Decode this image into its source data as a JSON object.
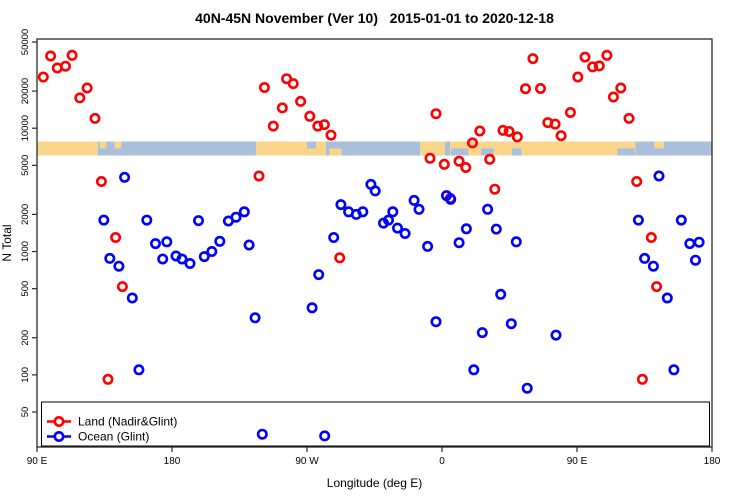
{
  "title": "40N-45N November (Ver 10)   2015-01-01 to 2020-12-18",
  "legend": {
    "items": [
      {
        "label": "Land (Nadir&Glint)",
        "color": "#ff0000"
      },
      {
        "label": "Ocean (Glint)",
        "color": "#0000ff"
      }
    ]
  },
  "chart_data": {
    "type": "scatter",
    "title": "40N-45N November (Ver 10)   2015-01-01 to 2020-12-18",
    "xlabel": "Longitude (deg E)",
    "ylabel": "N Total",
    "x_axis": {
      "range_deg": [
        90,
        540
      ],
      "note": "longitude axis wraps eastward starting at 90E",
      "ticks": [
        {
          "pos": 90,
          "label": "90 E"
        },
        {
          "pos": 180,
          "label": "180"
        },
        {
          "pos": 270,
          "label": "90 W"
        },
        {
          "pos": 360,
          "label": "0"
        },
        {
          "pos": 450,
          "label": "90 E"
        },
        {
          "pos": 540,
          "label": "180"
        }
      ]
    },
    "y_axis": {
      "scale": "log",
      "range": [
        26,
        52600
      ],
      "ticks": [
        50,
        100,
        200,
        500,
        1000,
        2000,
        5000,
        10000,
        20000,
        50000
      ]
    },
    "series": [
      {
        "name": "Land (Nadir&Glint)",
        "color": "#ff0000",
        "marker": "open-circle",
        "points": [
          [
            94.2,
            26000
          ],
          [
            99.1,
            38500
          ],
          [
            103.5,
            30800
          ],
          [
            109,
            31800
          ],
          [
            113.4,
            39000
          ],
          [
            118.5,
            17600
          ],
          [
            123.4,
            21200
          ],
          [
            128.7,
            12000
          ],
          [
            132.9,
            3700
          ],
          [
            137.3,
            92
          ],
          [
            142.4,
            1300
          ],
          [
            146.9,
            520
          ],
          [
            238,
            4100
          ],
          [
            241.6,
            21400
          ],
          [
            247.5,
            10400
          ],
          [
            253.5,
            14600
          ],
          [
            256.4,
            25200
          ],
          [
            260.8,
            23000
          ],
          [
            265.7,
            16500
          ],
          [
            271.9,
            12500
          ],
          [
            277.2,
            10400
          ],
          [
            281.6,
            10700
          ],
          [
            286,
            8800
          ],
          [
            291.8,
            890
          ],
          [
            352,
            5700
          ],
          [
            356,
            13100
          ],
          [
            361.5,
            5100
          ],
          [
            365.5,
            2700
          ],
          [
            371.4,
            5400
          ],
          [
            375.9,
            4800
          ],
          [
            380.3,
            7600
          ],
          [
            385.2,
            9500
          ],
          [
            391.8,
            5600
          ],
          [
            395.2,
            3200
          ],
          [
            400.7,
            9600
          ],
          [
            404.7,
            9400
          ],
          [
            410.2,
            8500
          ],
          [
            415.7,
            20900
          ],
          [
            420.6,
            36700
          ],
          [
            425.7,
            21000
          ],
          [
            430.5,
            11100
          ],
          [
            435.4,
            10800
          ],
          [
            439.4,
            8700
          ],
          [
            445.6,
            13400
          ],
          [
            450.5,
            26000
          ],
          [
            455.3,
            37700
          ],
          [
            460.4,
            31400
          ],
          [
            464.9,
            32000
          ],
          [
            469.9,
            39000
          ],
          [
            474.3,
            17900
          ],
          [
            479.2,
            21200
          ],
          [
            484.7,
            12000
          ],
          [
            489.8,
            3700
          ],
          [
            493.6,
            92
          ],
          [
            499.5,
            1300
          ],
          [
            503.1,
            520
          ]
        ]
      },
      {
        "name": "Ocean (Glint)",
        "color": "#0000ff",
        "marker": "open-circle",
        "points": [
          [
            134.5,
            1800
          ],
          [
            138.5,
            880
          ],
          [
            144.6,
            760
          ],
          [
            148.4,
            4000
          ],
          [
            153.5,
            420
          ],
          [
            157.9,
            110
          ],
          [
            163.2,
            1800
          ],
          [
            169,
            1160
          ],
          [
            173.8,
            870
          ],
          [
            176.5,
            1200
          ],
          [
            182.7,
            920
          ],
          [
            186.7,
            870
          ],
          [
            192,
            800
          ],
          [
            197.7,
            1780
          ],
          [
            201.5,
            910
          ],
          [
            206.5,
            1000
          ],
          [
            211.9,
            1210
          ],
          [
            217.6,
            1770
          ],
          [
            222.7,
            1900
          ],
          [
            228.2,
            2100
          ],
          [
            231.4,
            1130
          ],
          [
            235.4,
            290
          ],
          [
            240.2,
            33
          ],
          [
            273.4,
            350
          ],
          [
            277.8,
            650
          ],
          [
            281.8,
            32
          ],
          [
            287.8,
            1300
          ],
          [
            292.6,
            2400
          ],
          [
            297.7,
            2100
          ],
          [
            302.9,
            2000
          ],
          [
            307.2,
            2100
          ],
          [
            312.6,
            3500
          ],
          [
            315.5,
            3100
          ],
          [
            321,
            1700
          ],
          [
            324.3,
            1800
          ],
          [
            327.2,
            2100
          ],
          [
            330.3,
            1550
          ],
          [
            335.4,
            1400
          ],
          [
            341.4,
            2600
          ],
          [
            344.7,
            2200
          ],
          [
            350.4,
            1100
          ],
          [
            356,
            270
          ],
          [
            363,
            2840
          ],
          [
            365.8,
            2650
          ],
          [
            371.4,
            1180
          ],
          [
            376.3,
            1530
          ],
          [
            381.2,
            110
          ],
          [
            386.9,
            220
          ],
          [
            390.4,
            2200
          ],
          [
            396.2,
            1520
          ],
          [
            399.1,
            450
          ],
          [
            406.2,
            260
          ],
          [
            409.5,
            1200
          ],
          [
            416.8,
            78
          ],
          [
            436,
            210
          ],
          [
            490.9,
            1800
          ],
          [
            495.1,
            880
          ],
          [
            500.9,
            760
          ],
          [
            504.7,
            4100
          ],
          [
            510.2,
            420
          ],
          [
            514.6,
            110
          ],
          [
            519.5,
            1800
          ],
          [
            525.2,
            1160
          ],
          [
            529,
            850
          ],
          [
            531.4,
            1190
          ]
        ]
      }
    ],
    "map_band": {
      "description": "world-map strip of the 40N-45N latitude band drawn across the plot",
      "y_value_range": [
        5800,
        7800
      ],
      "land_color": "#F9D689",
      "ocean_color": "#A9BFDB",
      "segments": [
        {
          "type": "land",
          "from": 90,
          "to": 130.5,
          "part": "full"
        },
        {
          "type": "ocean",
          "from": 130.5,
          "to": 236,
          "part": "full"
        },
        {
          "type": "land",
          "from": 236,
          "to": 282.5,
          "part": "full"
        },
        {
          "type": "ocean",
          "from": 282.5,
          "to": 345.5,
          "part": "full"
        },
        {
          "type": "land",
          "from": 345.5,
          "to": 362,
          "part": "full"
        },
        {
          "type": "ocean",
          "from": 362,
          "to": 365.5,
          "part": "full"
        },
        {
          "type": "land",
          "from": 365.5,
          "to": 489,
          "part": "full"
        },
        {
          "type": "ocean",
          "from": 489,
          "to": 540,
          "part": "full"
        },
        {
          "type": "land",
          "from": 131.8,
          "to": 136.2,
          "part": "top"
        },
        {
          "type": "land",
          "from": 141.8,
          "to": 146.2,
          "part": "top"
        },
        {
          "type": "ocean",
          "from": 270,
          "to": 276,
          "part": "top"
        },
        {
          "type": "land",
          "from": 285,
          "to": 293,
          "part": "bottom"
        },
        {
          "type": "ocean",
          "from": 366,
          "to": 377.5,
          "part": "bottom"
        },
        {
          "type": "ocean",
          "from": 386,
          "to": 394.5,
          "part": "bottom"
        },
        {
          "type": "ocean",
          "from": 406.5,
          "to": 413,
          "part": "bottom"
        },
        {
          "type": "ocean",
          "from": 477,
          "to": 488.5,
          "part": "bottom"
        },
        {
          "type": "land",
          "from": 501.5,
          "to": 508,
          "part": "top"
        }
      ]
    }
  }
}
